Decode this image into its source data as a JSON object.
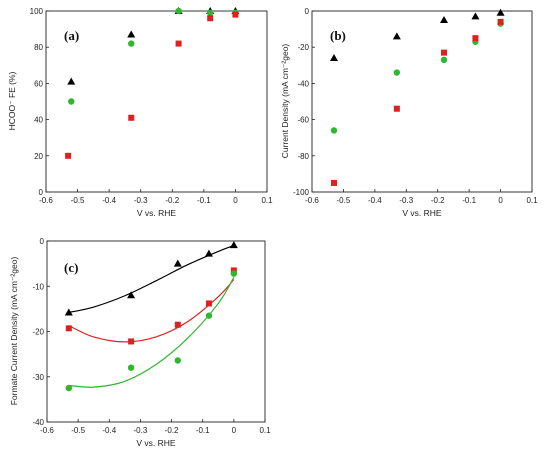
{
  "chart_data": [
    {
      "panel": "(a)",
      "type": "scatter",
      "xlabel": "V vs. RHE",
      "ylabel": "HCOO⁻ FE (%)",
      "xlim": [
        -0.6,
        0.1
      ],
      "ylim": [
        0,
        100
      ],
      "xticks": [
        "-0.6",
        "-0.5",
        "-0.4",
        "-0.3",
        "-0.2",
        "-0.1",
        "0",
        "0.1"
      ],
      "yticks": [
        "0",
        "20",
        "40",
        "60",
        "80",
        "100"
      ],
      "series": [
        {
          "marker": "triangle",
          "color": "#000000",
          "x": [
            -0.52,
            -0.33,
            -0.18,
            -0.08,
            0.0
          ],
          "y": [
            61,
            87,
            100,
            100,
            100
          ]
        },
        {
          "marker": "circle",
          "color": "#2db82d",
          "x": [
            -0.52,
            -0.33,
            -0.18,
            -0.08,
            0.0
          ],
          "y": [
            50,
            82,
            100,
            99,
            99
          ]
        },
        {
          "marker": "square",
          "color": "#e02020",
          "x": [
            -0.53,
            -0.33,
            -0.18,
            -0.08,
            0.0
          ],
          "y": [
            20,
            41,
            82,
            96,
            98
          ]
        }
      ]
    },
    {
      "panel": "(b)",
      "type": "scatter",
      "xlabel": "V vs. RHE",
      "ylabel": "Current Density (mA cm⁻²geo)",
      "xlim": [
        -0.6,
        0.1
      ],
      "ylim": [
        -100,
        0
      ],
      "xticks": [
        "-0.6",
        "-0.5",
        "-0.4",
        "-0.3",
        "-0.2",
        "-0.1",
        "0",
        "0.1"
      ],
      "yticks": [
        "-100",
        "-80",
        "-60",
        "-40",
        "-20",
        "0"
      ],
      "series": [
        {
          "marker": "triangle",
          "color": "#000000",
          "x": [
            -0.53,
            -0.33,
            -0.18,
            -0.08,
            0.0
          ],
          "y": [
            -26,
            -14,
            -5,
            -3,
            -1
          ]
        },
        {
          "marker": "circle",
          "color": "#2db82d",
          "x": [
            -0.53,
            -0.33,
            -0.18,
            -0.08,
            0.0
          ],
          "y": [
            -66,
            -34,
            -27,
            -17,
            -7
          ]
        },
        {
          "marker": "square",
          "color": "#e02020",
          "x": [
            -0.53,
            -0.33,
            -0.18,
            -0.08,
            0.0
          ],
          "y": [
            -95,
            -54,
            -23,
            -15,
            -6
          ]
        }
      ]
    },
    {
      "panel": "(c)",
      "type": "scatter",
      "xlabel": "V vs. RHE",
      "ylabel": "Formate Current Density (mA cm⁻²geo)",
      "xlim": [
        -0.6,
        0.1
      ],
      "ylim": [
        -40,
        0
      ],
      "xticks": [
        "-0.6",
        "-0.5",
        "-0.4",
        "-0.3",
        "-0.2",
        "-0.1",
        "0",
        "0.1"
      ],
      "yticks": [
        "-40",
        "-30",
        "-20",
        "-10",
        "0"
      ],
      "series": [
        {
          "marker": "triangle",
          "color": "#000000",
          "x": [
            -0.53,
            -0.33,
            -0.18,
            -0.08,
            0.0
          ],
          "y": [
            -15.8,
            -12.0,
            -5.0,
            -2.8,
            -0.9
          ],
          "fit_x": [
            -0.53,
            -0.45,
            -0.35,
            -0.25,
            -0.15,
            -0.05,
            0.0
          ],
          "fit_y": [
            -15.8,
            -14.6,
            -12.1,
            -8.8,
            -5.3,
            -2.3,
            -1.0
          ]
        },
        {
          "marker": "square",
          "color": "#e02020",
          "x": [
            -0.53,
            -0.33,
            -0.18,
            -0.08,
            0.0
          ],
          "y": [
            -19.3,
            -22.2,
            -18.5,
            -13.8,
            -6.5
          ],
          "fit_x": [
            -0.53,
            -0.45,
            -0.35,
            -0.25,
            -0.15,
            -0.05,
            0.0
          ],
          "fit_y": [
            -18.7,
            -21.2,
            -22.3,
            -21.2,
            -17.9,
            -12.3,
            -8.5
          ]
        },
        {
          "marker": "circle",
          "color": "#2db82d",
          "x": [
            -0.53,
            -0.33,
            -0.18,
            -0.08,
            0.0
          ],
          "y": [
            -32.5,
            -28.0,
            -26.4,
            -16.5,
            -7.2
          ],
          "fit_x": [
            -0.53,
            -0.45,
            -0.35,
            -0.25,
            -0.15,
            -0.05,
            0.0
          ],
          "fit_y": [
            -31.9,
            -32.3,
            -31.0,
            -27.3,
            -21.6,
            -13.8,
            -8.0
          ]
        }
      ]
    }
  ]
}
